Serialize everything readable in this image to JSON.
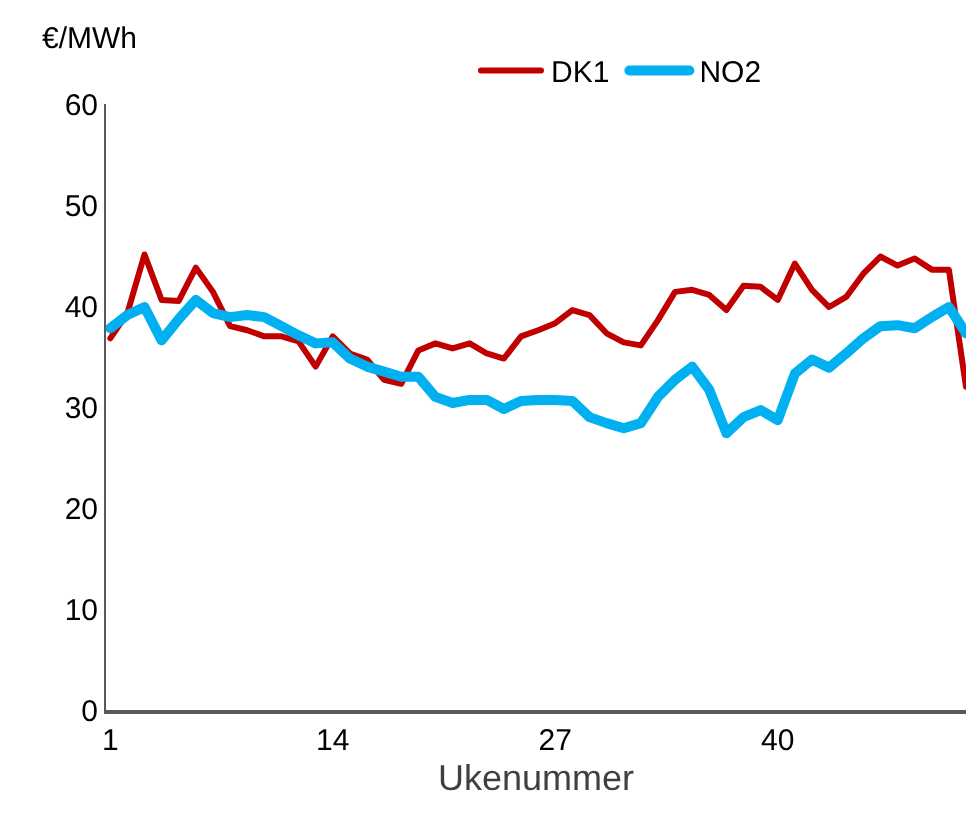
{
  "chart_data": {
    "type": "line",
    "ylabel": "€/MWh",
    "xlabel": "Ukenummer",
    "categories": [
      "1",
      null,
      null,
      null,
      null,
      null,
      null,
      null,
      null,
      null,
      null,
      null,
      null,
      "14",
      null,
      null,
      null,
      null,
      null,
      null,
      null,
      null,
      null,
      null,
      null,
      null,
      "27",
      null,
      null,
      null,
      null,
      null,
      null,
      null,
      null,
      null,
      null,
      null,
      null,
      "40",
      null,
      null,
      null,
      null,
      null,
      null,
      null,
      null,
      null,
      null,
      null
    ],
    "series": [
      {
        "name": "DK1",
        "color": "#c00000",
        "values": [
          36.8,
          39.3,
          45.1,
          40.6,
          40.5,
          43.8,
          41.4,
          38.0,
          37.6,
          37.0,
          37.0,
          36.5,
          34.0,
          37.0,
          35.3,
          34.7,
          32.7,
          32.3,
          35.6,
          36.3,
          35.8,
          36.3,
          35.3,
          34.8,
          37.0,
          37.6,
          38.3,
          39.6,
          39.1,
          37.3,
          36.4,
          36.1,
          38.6,
          41.4,
          41.6,
          41.1,
          39.6,
          42.0,
          41.9,
          40.6,
          44.2,
          41.6,
          39.9,
          40.9,
          43.2,
          44.9,
          44.0,
          44.7,
          43.6,
          43.6,
          32.0
        ]
      },
      {
        "name": "NO2",
        "color": "#00b0f0",
        "values": [
          37.8,
          39.1,
          39.9,
          36.6,
          38.7,
          40.6,
          39.3,
          38.9,
          39.1,
          38.9,
          38.0,
          37.1,
          36.3,
          36.4,
          34.8,
          34.0,
          33.5,
          33.0,
          33.0,
          31.0,
          30.4,
          30.7,
          30.7,
          29.8,
          30.6,
          30.7,
          30.7,
          30.6,
          29.0,
          28.4,
          27.9,
          28.4,
          31.0,
          32.7,
          34.0,
          31.7,
          27.4,
          29.0,
          29.7,
          28.7,
          33.3,
          34.7,
          33.9,
          35.3,
          36.8,
          38.0,
          38.1,
          37.8,
          38.9,
          39.9,
          37.3
        ]
      }
    ],
    "ylim": [
      0,
      60
    ],
    "yticks": [
      0,
      10,
      20,
      30,
      40,
      50,
      60
    ],
    "legend": "top",
    "marker": "none",
    "line_style": "solid"
  }
}
